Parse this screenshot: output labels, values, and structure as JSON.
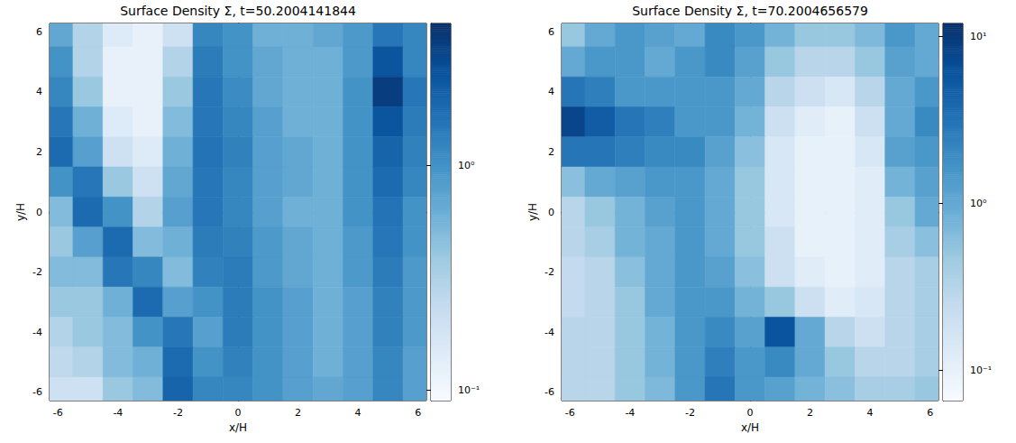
{
  "chart_data": [
    {
      "type": "heatmap",
      "title": "Surface Density Σ, t=50.2004141844",
      "x_label": "x/H",
      "y_label": "y/H",
      "xlim": [
        -6.28,
        6.28
      ],
      "ylim": [
        -6.28,
        6.28
      ],
      "xticks": [
        -6,
        -4,
        -2,
        0,
        2,
        4,
        6
      ],
      "yticks": [
        -6,
        -4,
        -2,
        0,
        2,
        4,
        6
      ],
      "x": [
        -6,
        -5,
        -4,
        -3,
        -2,
        -1,
        0,
        1,
        2,
        3,
        4,
        5,
        6
      ],
      "y": [
        6,
        5,
        4,
        3,
        2,
        1,
        0,
        -1,
        -2,
        -3,
        -4,
        -5,
        -6
      ],
      "z": [
        [
          0.7,
          0.3,
          0.15,
          0.12,
          0.2,
          1.2,
          1.0,
          0.6,
          0.6,
          0.7,
          0.9,
          1.5,
          1.2
        ],
        [
          1.0,
          0.3,
          0.12,
          0.12,
          0.3,
          1.4,
          1.0,
          0.7,
          0.6,
          0.6,
          0.9,
          2.5,
          1.2
        ],
        [
          1.2,
          0.4,
          0.12,
          0.12,
          0.4,
          1.5,
          1.1,
          0.7,
          0.6,
          0.6,
          1.0,
          3.5,
          1.5
        ],
        [
          1.5,
          0.6,
          0.15,
          0.12,
          0.5,
          1.5,
          1.2,
          0.8,
          0.6,
          0.6,
          1.0,
          2.5,
          1.4
        ],
        [
          1.8,
          0.8,
          0.2,
          0.15,
          0.6,
          1.6,
          1.3,
          0.8,
          0.7,
          0.6,
          1.0,
          2.0,
          1.3
        ],
        [
          1.0,
          1.5,
          0.4,
          0.2,
          0.7,
          1.5,
          1.2,
          0.8,
          0.7,
          0.6,
          1.0,
          1.8,
          1.2
        ],
        [
          0.5,
          1.8,
          1.0,
          0.3,
          0.8,
          1.5,
          1.2,
          0.8,
          0.6,
          0.6,
          1.0,
          1.6,
          1.0
        ],
        [
          0.4,
          0.8,
          1.8,
          0.5,
          0.6,
          1.4,
          1.3,
          0.9,
          0.7,
          0.6,
          0.9,
          1.5,
          1.0
        ],
        [
          0.5,
          0.5,
          1.5,
          1.2,
          0.5,
          1.3,
          1.4,
          0.9,
          0.7,
          0.6,
          0.9,
          1.4,
          0.9
        ],
        [
          0.4,
          0.4,
          0.6,
          1.8,
          0.8,
          1.0,
          1.4,
          1.0,
          0.8,
          0.6,
          0.8,
          1.3,
          0.9
        ],
        [
          0.3,
          0.4,
          0.5,
          1.0,
          1.5,
          0.8,
          1.4,
          1.0,
          0.8,
          0.6,
          0.8,
          1.3,
          0.9
        ],
        [
          0.25,
          0.3,
          0.5,
          0.6,
          1.8,
          1.0,
          1.3,
          1.0,
          0.8,
          0.6,
          0.8,
          1.2,
          0.8
        ],
        [
          0.2,
          0.2,
          0.4,
          0.5,
          2.0,
          1.2,
          1.2,
          1.0,
          0.8,
          0.7,
          0.8,
          1.2,
          0.8
        ]
      ],
      "colorbar": {
        "log": true,
        "range": [
          0.09,
          4.3
        ],
        "ticks": [
          {
            "value": 1,
            "label": "10⁰"
          },
          {
            "value": 0.1,
            "label": "10⁻¹"
          }
        ]
      }
    },
    {
      "type": "heatmap",
      "title": "Surface Density Σ, t=70.2004656579",
      "x_label": "x/H",
      "y_label": "y/H",
      "xlim": [
        -6.28,
        6.28
      ],
      "ylim": [
        -6.28,
        6.28
      ],
      "xticks": [
        -6,
        -4,
        -2,
        0,
        2,
        4,
        6
      ],
      "yticks": [
        -6,
        -4,
        -2,
        0,
        2,
        4,
        6
      ],
      "x": [
        -6,
        -5,
        -4,
        -3,
        -2,
        -1,
        0,
        1,
        2,
        3,
        4,
        5,
        6
      ],
      "y": [
        6,
        5,
        4,
        3,
        2,
        1,
        0,
        -1,
        -2,
        -3,
        -4,
        -5,
        -6
      ],
      "z": [
        [
          0.5,
          1.0,
          1.5,
          1.2,
          1.0,
          2.0,
          1.5,
          0.8,
          0.5,
          0.5,
          0.7,
          1.5,
          1.0
        ],
        [
          1.0,
          1.5,
          1.5,
          1.0,
          1.5,
          2.0,
          1.2,
          0.5,
          0.3,
          0.3,
          0.5,
          1.2,
          1.0
        ],
        [
          3.0,
          2.5,
          1.5,
          1.5,
          1.5,
          1.5,
          1.0,
          0.3,
          0.2,
          0.15,
          0.3,
          1.0,
          1.5
        ],
        [
          8.0,
          5.0,
          3.0,
          2.5,
          1.5,
          1.5,
          0.8,
          0.2,
          0.12,
          0.1,
          0.2,
          1.0,
          2.0
        ],
        [
          3.0,
          3.0,
          2.5,
          2.0,
          2.0,
          1.2,
          0.6,
          0.15,
          0.1,
          0.1,
          0.15,
          1.2,
          1.5
        ],
        [
          0.6,
          1.0,
          1.2,
          1.5,
          1.5,
          1.0,
          0.5,
          0.15,
          0.1,
          0.1,
          0.12,
          0.8,
          1.2
        ],
        [
          0.3,
          0.5,
          0.8,
          1.2,
          1.5,
          1.0,
          0.5,
          0.15,
          0.1,
          0.1,
          0.12,
          0.5,
          1.0
        ],
        [
          0.3,
          0.4,
          0.8,
          1.0,
          1.5,
          1.0,
          0.5,
          0.2,
          0.1,
          0.1,
          0.12,
          0.4,
          0.6
        ],
        [
          0.25,
          0.3,
          0.6,
          1.0,
          1.5,
          1.2,
          0.6,
          0.2,
          0.12,
          0.1,
          0.12,
          0.3,
          0.4
        ],
        [
          0.25,
          0.3,
          0.5,
          1.0,
          1.5,
          1.5,
          0.8,
          0.5,
          0.2,
          0.12,
          0.15,
          0.3,
          0.4
        ],
        [
          0.3,
          0.3,
          0.5,
          0.8,
          1.5,
          2.0,
          1.2,
          6.0,
          1.0,
          0.3,
          0.2,
          0.3,
          0.4
        ],
        [
          0.3,
          0.3,
          0.5,
          0.8,
          1.5,
          2.5,
          1.5,
          2.0,
          1.0,
          0.5,
          0.3,
          0.3,
          0.4
        ],
        [
          0.3,
          0.3,
          0.5,
          0.7,
          1.5,
          3.0,
          1.5,
          1.2,
          0.8,
          0.6,
          0.4,
          0.4,
          0.5
        ]
      ],
      "colorbar": {
        "log": true,
        "range": [
          0.066,
          12
        ],
        "ticks": [
          {
            "value": 10,
            "label": "10¹"
          },
          {
            "value": 1,
            "label": "10⁰"
          },
          {
            "value": 0.1,
            "label": "10⁻¹"
          }
        ]
      }
    }
  ]
}
